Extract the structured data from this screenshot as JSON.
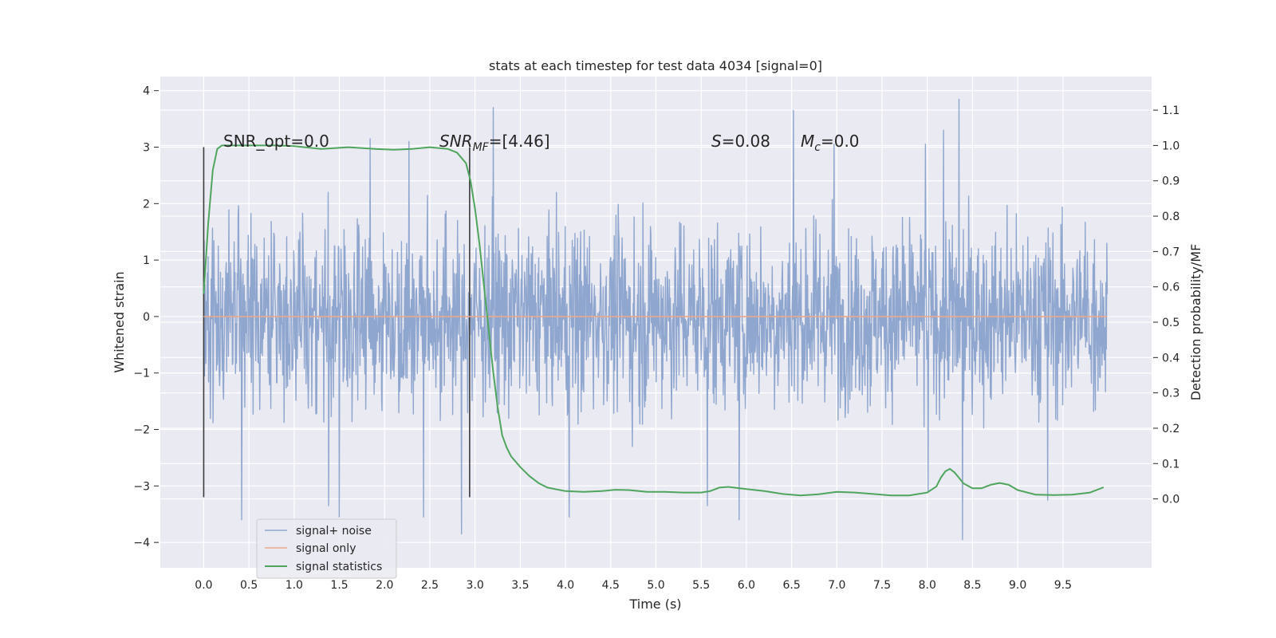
{
  "chart_data": {
    "type": "line",
    "title": "stats at each timestep for test data 4034 [signal=0]",
    "xlabel": "Time (s)",
    "ylabel": "Whitened strain",
    "y2label": "Detection probability/MF",
    "xlim": [
      -0.48,
      10.48
    ],
    "ylim": [
      -4.45,
      4.25
    ],
    "y2lim": [
      -0.195,
      1.195
    ],
    "xticks": [
      0.0,
      0.5,
      1.0,
      1.5,
      2.0,
      2.5,
      3.0,
      3.5,
      4.0,
      4.5,
      5.0,
      5.5,
      6.0,
      6.5,
      7.0,
      7.5,
      8.0,
      8.5,
      9.0,
      9.5
    ],
    "xtick_labels": [
      "0.0",
      "0.5",
      "1.0",
      "1.5",
      "2.0",
      "2.5",
      "3.0",
      "3.5",
      "4.0",
      "4.5",
      "5.0",
      "5.5",
      "6.0",
      "6.5",
      "7.0",
      "7.5",
      "8.0",
      "8.5",
      "9.0",
      "9.5"
    ],
    "yticks": [
      -4,
      -3,
      -2,
      -1,
      0,
      1,
      2,
      3,
      4
    ],
    "ytick_labels": [
      "−4",
      "−3",
      "−2",
      "−1",
      "0",
      "1",
      "2",
      "3",
      "4"
    ],
    "y2ticks": [
      0.0,
      0.1,
      0.2,
      0.3,
      0.4,
      0.5,
      0.6,
      0.7,
      0.8,
      0.9,
      1.0,
      1.1
    ],
    "y2tick_labels": [
      "0.0",
      "0.1",
      "0.2",
      "0.3",
      "0.4",
      "0.5",
      "0.6",
      "0.7",
      "0.8",
      "0.9",
      "1.0",
      "1.1"
    ],
    "grid": true,
    "legend_position": "lower-left",
    "annotations": {
      "snr_opt": "SNR_opt=0.0",
      "snr_mf_label": "SNR",
      "snr_mf_sub": "MF",
      "snr_mf_value": "=[4.46]",
      "s_label": "S",
      "s_value": "=0.08",
      "mc_label": "M",
      "mc_sub": "c",
      "mc_value": "=0.0"
    },
    "vlines": [
      {
        "x": 0.0,
        "y_range": [
          -3.2,
          3.0
        ]
      },
      {
        "x": 2.94,
        "y_range": [
          -3.2,
          3.0
        ]
      }
    ],
    "series": [
      {
        "name": "signal+ noise",
        "color": "#8fa6cf",
        "kind": "noise",
        "x_range": [
          0.0,
          9.99
        ],
        "n_samples": 2048,
        "typical_range": [
          -2.0,
          2.2
        ],
        "peaks": [
          {
            "x": 3.2,
            "y": 3.7
          },
          {
            "x": 6.52,
            "y": 3.65
          },
          {
            "x": 8.35,
            "y": 3.85
          },
          {
            "x": 8.39,
            "y": -3.95
          },
          {
            "x": 2.85,
            "y": -3.85
          },
          {
            "x": 0.42,
            "y": -3.6
          },
          {
            "x": 1.5,
            "y": -3.55
          },
          {
            "x": 2.43,
            "y": -3.55
          },
          {
            "x": 4.04,
            "y": -3.55
          },
          {
            "x": 5.92,
            "y": -3.6
          },
          {
            "x": 1.38,
            "y": -3.35
          },
          {
            "x": 5.57,
            "y": -3.35
          },
          {
            "x": 9.33,
            "y": -3.25
          },
          {
            "x": 1.84,
            "y": 3.15
          },
          {
            "x": 2.27,
            "y": 3.1
          },
          {
            "x": 6.97,
            "y": 3.05
          },
          {
            "x": 8.18,
            "y": 3.3
          },
          {
            "x": 7.98,
            "y": 3.05
          },
          {
            "x": 4.74,
            "y": -2.3
          },
          {
            "x": 8.01,
            "y": -3.1
          }
        ]
      },
      {
        "name": "signal only",
        "color": "#e9a98e",
        "kind": "line",
        "x": [
          0.0,
          9.99
        ],
        "y": [
          0.0,
          0.0
        ]
      },
      {
        "name": "signal statistics",
        "color": "#4fa55d",
        "kind": "line",
        "axis": "right",
        "x": [
          0.0,
          0.05,
          0.1,
          0.15,
          0.2,
          0.3,
          0.5,
          0.8,
          1.0,
          1.3,
          1.6,
          1.9,
          2.1,
          2.3,
          2.5,
          2.7,
          2.8,
          2.9,
          2.95,
          3.0,
          3.05,
          3.1,
          3.15,
          3.2,
          3.25,
          3.3,
          3.35,
          3.4,
          3.5,
          3.6,
          3.7,
          3.8,
          4.0,
          4.2,
          4.4,
          4.55,
          4.7,
          4.9,
          5.1,
          5.3,
          5.5,
          5.6,
          5.7,
          5.8,
          6.0,
          6.2,
          6.4,
          6.6,
          6.8,
          7.0,
          7.2,
          7.4,
          7.6,
          7.8,
          8.0,
          8.1,
          8.15,
          8.2,
          8.25,
          8.3,
          8.35,
          8.4,
          8.5,
          8.6,
          8.7,
          8.8,
          8.9,
          9.0,
          9.2,
          9.4,
          9.6,
          9.8,
          9.95
        ],
        "y": [
          0.58,
          0.78,
          0.93,
          0.99,
          1.0,
          1.0,
          1.0,
          1.0,
          0.998,
          0.99,
          0.995,
          0.99,
          0.988,
          0.99,
          0.995,
          0.99,
          0.98,
          0.95,
          0.9,
          0.82,
          0.72,
          0.6,
          0.48,
          0.36,
          0.26,
          0.18,
          0.145,
          0.12,
          0.09,
          0.065,
          0.045,
          0.032,
          0.022,
          0.02,
          0.022,
          0.026,
          0.025,
          0.02,
          0.02,
          0.018,
          0.018,
          0.022,
          0.032,
          0.034,
          0.028,
          0.022,
          0.014,
          0.01,
          0.013,
          0.02,
          0.018,
          0.014,
          0.01,
          0.01,
          0.018,
          0.035,
          0.06,
          0.078,
          0.085,
          0.075,
          0.06,
          0.044,
          0.03,
          0.03,
          0.04,
          0.045,
          0.04,
          0.025,
          0.012,
          0.011,
          0.012,
          0.018,
          0.033
        ]
      }
    ]
  }
}
